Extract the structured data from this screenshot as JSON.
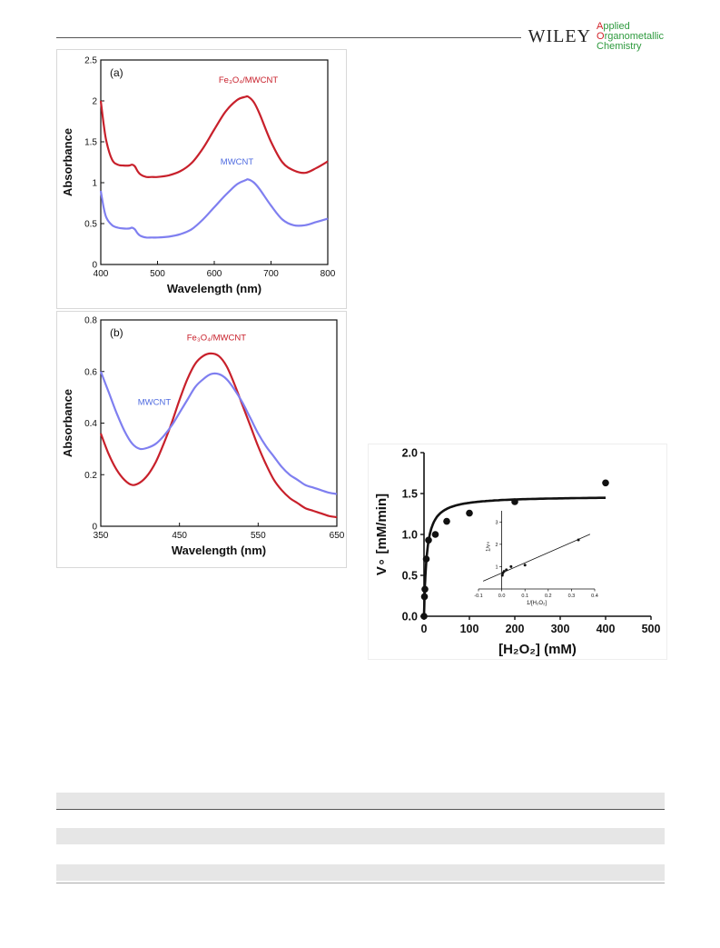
{
  "header": {
    "publisher": "WILEY",
    "journal_lines": [
      "Applied",
      "Organometallic",
      "Chemistry"
    ]
  },
  "chart_data": [
    {
      "type": "line",
      "panel_label": "(a)",
      "xlabel": "Wavelength (nm)",
      "ylabel": "Absorbance",
      "xlim": [
        400,
        800
      ],
      "ylim": [
        0,
        2.5
      ],
      "xticks": [
        400,
        500,
        600,
        700,
        800
      ],
      "yticks": [
        0,
        0.5,
        1,
        1.5,
        2,
        2.5
      ],
      "ytick_labels": [
        "0",
        "0.5",
        "1",
        "1.5",
        "2",
        "2.5"
      ],
      "series": [
        {
          "name": "Fe3O4/MWCNT",
          "color": "#c8202b",
          "x": [
            400,
            405,
            410,
            420,
            430,
            440,
            450,
            455,
            460,
            465,
            470,
            480,
            490,
            500,
            520,
            540,
            560,
            580,
            600,
            620,
            640,
            655,
            660,
            670,
            680,
            700,
            720,
            740,
            760,
            780,
            800
          ],
          "y": [
            2.0,
            1.72,
            1.5,
            1.28,
            1.22,
            1.21,
            1.21,
            1.22,
            1.2,
            1.14,
            1.1,
            1.07,
            1.07,
            1.07,
            1.09,
            1.14,
            1.24,
            1.42,
            1.65,
            1.87,
            2.01,
            2.05,
            2.05,
            1.98,
            1.84,
            1.5,
            1.25,
            1.15,
            1.12,
            1.18,
            1.26
          ]
        },
        {
          "name": "MWCNT",
          "color": "#7f7ff0",
          "x": [
            400,
            405,
            410,
            420,
            430,
            440,
            450,
            455,
            460,
            465,
            470,
            480,
            490,
            500,
            520,
            540,
            560,
            580,
            600,
            620,
            640,
            655,
            660,
            670,
            680,
            700,
            720,
            740,
            760,
            780,
            800
          ],
          "y": [
            0.9,
            0.7,
            0.57,
            0.48,
            0.45,
            0.44,
            0.44,
            0.45,
            0.43,
            0.38,
            0.35,
            0.33,
            0.33,
            0.33,
            0.34,
            0.37,
            0.43,
            0.55,
            0.7,
            0.85,
            0.98,
            1.03,
            1.04,
            1.0,
            0.92,
            0.72,
            0.55,
            0.48,
            0.48,
            0.52,
            0.56
          ]
        }
      ],
      "labels": [
        {
          "text": "Fe3O4/MWCNT",
          "display": "Fe₃O₄/MWCNT",
          "x": 660,
          "y": 2.22,
          "color": "#c8202b"
        },
        {
          "text": "MWCNT",
          "x": 640,
          "y": 1.22,
          "color": "#4f6be0"
        }
      ]
    },
    {
      "type": "line",
      "panel_label": "(b)",
      "xlabel": "Wavelength (nm)",
      "ylabel": "Absorbance",
      "xlim": [
        350,
        650
      ],
      "ylim": [
        0,
        0.8
      ],
      "xticks": [
        350,
        450,
        550,
        650
      ],
      "yticks": [
        0,
        0.2,
        0.4,
        0.6,
        0.8
      ],
      "ytick_labels": [
        "0",
        "0.2",
        "0.4",
        "0.6",
        "0.8"
      ],
      "series": [
        {
          "name": "Fe3O4/MWCNT",
          "color": "#c8202b",
          "x": [
            350,
            360,
            370,
            380,
            390,
            400,
            410,
            420,
            430,
            440,
            450,
            460,
            470,
            480,
            490,
            500,
            510,
            520,
            530,
            540,
            550,
            560,
            570,
            580,
            590,
            600,
            610,
            620,
            630,
            640,
            650
          ],
          "y": [
            0.36,
            0.28,
            0.22,
            0.18,
            0.16,
            0.17,
            0.2,
            0.25,
            0.32,
            0.4,
            0.49,
            0.57,
            0.63,
            0.66,
            0.67,
            0.66,
            0.62,
            0.55,
            0.47,
            0.39,
            0.31,
            0.24,
            0.18,
            0.14,
            0.11,
            0.09,
            0.07,
            0.06,
            0.05,
            0.04,
            0.035
          ]
        },
        {
          "name": "MWCNT",
          "color": "#7f7ff0",
          "x": [
            350,
            360,
            370,
            380,
            390,
            400,
            410,
            420,
            430,
            440,
            450,
            460,
            470,
            480,
            490,
            500,
            510,
            520,
            530,
            540,
            550,
            560,
            570,
            580,
            590,
            600,
            610,
            620,
            630,
            640,
            650
          ],
          "y": [
            0.6,
            0.52,
            0.44,
            0.37,
            0.32,
            0.3,
            0.305,
            0.32,
            0.35,
            0.39,
            0.44,
            0.49,
            0.54,
            0.57,
            0.59,
            0.59,
            0.57,
            0.53,
            0.48,
            0.42,
            0.36,
            0.31,
            0.27,
            0.23,
            0.2,
            0.18,
            0.16,
            0.15,
            0.14,
            0.13,
            0.125
          ]
        }
      ],
      "labels": [
        {
          "text": "Fe3O4/MWCNT",
          "display": "Fe₃O₄/MWCNT",
          "x": 497,
          "y": 0.72,
          "color": "#c8202b"
        },
        {
          "text": "MWCNT",
          "x": 418,
          "y": 0.47,
          "color": "#4f6be0"
        }
      ]
    },
    {
      "type": "scatter",
      "xlabel": "[H2O2] (mM)",
      "xlabel_display": "[H₂O₂] (mM)",
      "ylabel": "V∘ [mM/min]",
      "xlim": [
        0,
        500
      ],
      "ylim": [
        0,
        2.0
      ],
      "xticks": [
        0,
        100,
        200,
        300,
        400,
        500
      ],
      "yticks": [
        0.0,
        0.5,
        1.0,
        1.5,
        2.0
      ],
      "ytick_labels": [
        "0.0",
        "0.5",
        "1.0",
        "1.5",
        "2.0"
      ],
      "points": {
        "x": [
          0,
          1,
          2,
          5,
          10,
          25,
          50,
          100,
          200,
          400
        ],
        "y": [
          0.0,
          0.24,
          0.33,
          0.7,
          0.93,
          1.0,
          1.16,
          1.26,
          1.4,
          1.63
        ]
      },
      "fit": {
        "model": "Michaelis-Menten",
        "Vmax": 1.47,
        "Km": 6.0,
        "x_range": [
          0,
          400
        ]
      },
      "inset": {
        "xlabel": "1/[H2O2]",
        "xlabel_display": "1/[H₂O₂]",
        "ylabel": "1/v∘",
        "xlim": [
          -0.1,
          0.4
        ],
        "ylim": [
          0,
          3.5
        ],
        "xticks": [
          -0.1,
          0.0,
          0.1,
          0.2,
          0.3,
          0.4
        ],
        "xtick_labels": [
          "-0.1",
          "0.0",
          "0.1",
          "0.2",
          "0.3",
          "0.4"
        ],
        "yticks": [
          1,
          2,
          3
        ],
        "points": {
          "x": [
            0.0025,
            0.005,
            0.01,
            0.02,
            0.04,
            0.1,
            0.33
          ],
          "y": [
            0.61,
            0.71,
            0.79,
            0.86,
            1.0,
            1.07,
            2.2
          ]
        },
        "line": {
          "x": [
            -0.08,
            0.38
          ],
          "y": [
            0.35,
            2.45
          ]
        }
      }
    }
  ]
}
